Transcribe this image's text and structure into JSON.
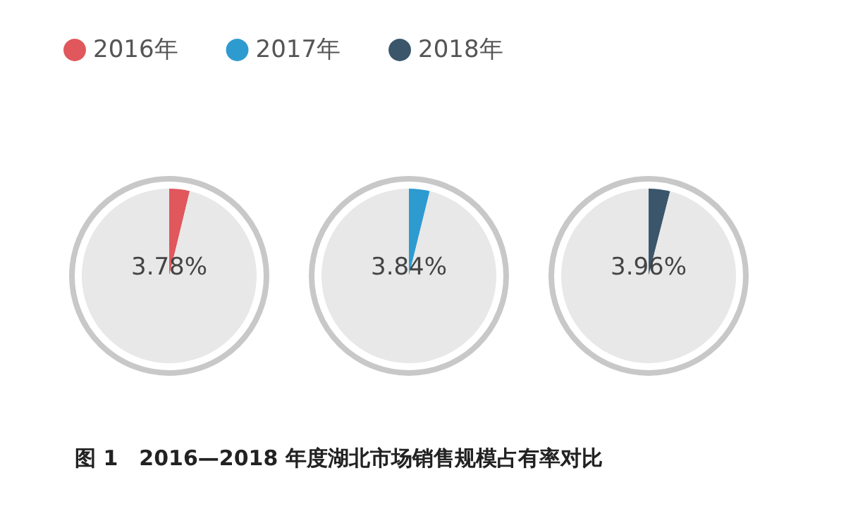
{
  "chart_data": {
    "type": "pie",
    "title": "图 1　2016—2018 年度湖北市场销售规模占有率对比",
    "categories": [
      null,
      null
    ],
    "series": [
      {
        "name": "2016年",
        "values": [
          3.78,
          96.22
        ],
        "colors": [
          "#e0575c",
          "#e8e8e8"
        ],
        "value_labels": [
          "3.78%",
          null
        ]
      },
      {
        "name": "2017年",
        "values": [
          3.84,
          96.16
        ],
        "colors": [
          "#2e9bd0",
          "#e8e8e8"
        ],
        "value_labels": [
          "3.84%",
          null
        ]
      },
      {
        "name": "2018年",
        "values": [
          3.96,
          96.04
        ],
        "colors": [
          "#3b566b",
          "#e8e8e8"
        ],
        "value_labels": [
          "3.96%",
          null
        ]
      }
    ],
    "legend": "top left"
  }
}
